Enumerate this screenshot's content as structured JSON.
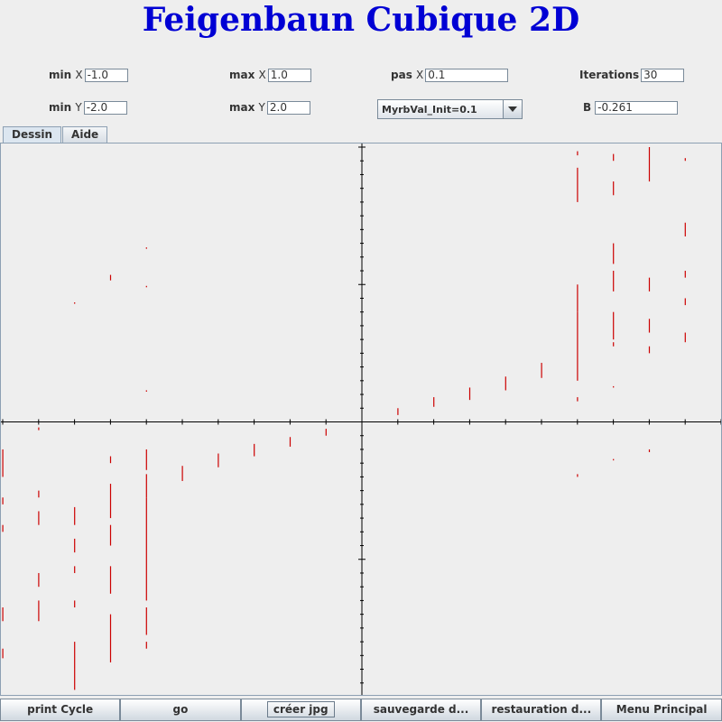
{
  "app": {
    "title": "Feigenbaun Cubique 2D"
  },
  "params": {
    "min_x": {
      "label": "min",
      "unit": "X",
      "value": "-1.0"
    },
    "max_x": {
      "label": "max",
      "unit": "X",
      "value": "1.0"
    },
    "pas_x": {
      "label": "pas",
      "unit": "X",
      "value": "0.1"
    },
    "iterations": {
      "label": "Iterations",
      "value": "30"
    },
    "min_y": {
      "label": "min",
      "unit": "Y",
      "value": "-2.0"
    },
    "max_y": {
      "label": "max",
      "unit": "Y",
      "value": "2.0"
    },
    "combo": {
      "selected": "MyrbVal_Init=0.1"
    },
    "b": {
      "label": "B",
      "value": "-0.261"
    }
  },
  "tabs": [
    {
      "label": "Dessin",
      "active": true
    },
    {
      "label": "Aide",
      "active": false
    }
  ],
  "buttons": [
    {
      "label": "print Cycle"
    },
    {
      "label": "go"
    },
    {
      "label": "créer jpg"
    },
    {
      "label": "sauvegarde d..."
    },
    {
      "label": "restauration d..."
    },
    {
      "label": "Menu Principal"
    }
  ],
  "plot": {
    "xlim": [
      -1.0,
      1.0
    ],
    "ylim": [
      -2.0,
      2.0
    ],
    "point_color": "#cc0000",
    "axis_color": "#000000",
    "series": [
      {
        "x": -1.0,
        "segments": [
          [
            -0.2,
            -0.4
          ],
          [
            -0.55,
            -0.6
          ],
          [
            -0.75,
            -0.8
          ],
          [
            -1.35,
            -1.45
          ],
          [
            -1.65,
            -1.72
          ]
        ]
      },
      {
        "x": -0.9,
        "segments": [
          [
            -0.04,
            -0.06
          ],
          [
            -0.5,
            -0.55
          ],
          [
            -0.65,
            -0.75
          ],
          [
            -1.1,
            -1.2
          ],
          [
            -1.3,
            -1.45
          ]
        ]
      },
      {
        "x": -0.8,
        "segments": [
          [
            0.86,
            0.87
          ],
          [
            -0.62,
            -0.75
          ],
          [
            -0.85,
            -0.95
          ],
          [
            -1.05,
            -1.1
          ],
          [
            -1.3,
            -1.35
          ],
          [
            -1.6,
            -1.8
          ],
          [
            -1.8,
            -1.95
          ]
        ]
      },
      {
        "x": -0.7,
        "segments": [
          [
            1.03,
            1.07
          ],
          [
            -0.25,
            -0.3
          ],
          [
            -0.45,
            -0.7
          ],
          [
            -0.75,
            -0.9
          ],
          [
            -1.05,
            -1.25
          ],
          [
            -1.4,
            -1.75
          ]
        ]
      },
      {
        "x": -0.6,
        "segments": [
          [
            1.26,
            1.27
          ],
          [
            0.98,
            0.99
          ],
          [
            0.22,
            0.23
          ],
          [
            -0.2,
            -0.35
          ],
          [
            -0.38,
            -0.55
          ],
          [
            -0.55,
            -1.3
          ],
          [
            -1.35,
            -1.55
          ],
          [
            -1.6,
            -1.65
          ]
        ]
      },
      {
        "x": -0.5,
        "segments": [
          [
            -0.32,
            -0.43
          ]
        ]
      },
      {
        "x": -0.4,
        "segments": [
          [
            -0.23,
            -0.33
          ]
        ]
      },
      {
        "x": -0.3,
        "segments": [
          [
            -0.16,
            -0.25
          ]
        ]
      },
      {
        "x": -0.2,
        "segments": [
          [
            -0.11,
            -0.18
          ]
        ]
      },
      {
        "x": -0.1,
        "segments": [
          [
            -0.05,
            -0.1
          ]
        ]
      },
      {
        "x": 0.1,
        "segments": [
          [
            0.05,
            0.1
          ]
        ]
      },
      {
        "x": 0.2,
        "segments": [
          [
            0.11,
            0.18
          ]
        ]
      },
      {
        "x": 0.3,
        "segments": [
          [
            0.16,
            0.25
          ]
        ]
      },
      {
        "x": 0.4,
        "segments": [
          [
            0.23,
            0.33
          ]
        ]
      },
      {
        "x": 0.5,
        "segments": [
          [
            0.32,
            0.43
          ]
        ]
      },
      {
        "x": 0.6,
        "segments": [
          [
            1.94,
            1.97
          ],
          [
            1.6,
            1.85
          ],
          [
            0.8,
            1.0
          ],
          [
            0.3,
            0.8
          ],
          [
            0.15,
            0.18
          ],
          [
            -0.38,
            -0.4
          ]
        ]
      },
      {
        "x": 0.7,
        "segments": [
          [
            1.9,
            1.95
          ],
          [
            1.65,
            1.75
          ],
          [
            1.15,
            1.3
          ],
          [
            0.95,
            1.1
          ],
          [
            0.6,
            0.8
          ],
          [
            0.55,
            0.58
          ],
          [
            0.25,
            0.26
          ],
          [
            -0.27,
            -0.28
          ]
        ]
      },
      {
        "x": 0.8,
        "segments": [
          [
            1.75,
            2.0
          ],
          [
            0.95,
            1.05
          ],
          [
            0.65,
            0.75
          ],
          [
            0.5,
            0.55
          ],
          [
            -0.2,
            -0.22
          ]
        ]
      },
      {
        "x": 0.9,
        "segments": [
          [
            1.9,
            1.92
          ],
          [
            1.35,
            1.45
          ],
          [
            1.05,
            1.1
          ],
          [
            0.85,
            0.9
          ],
          [
            0.58,
            0.65
          ]
        ]
      }
    ]
  }
}
